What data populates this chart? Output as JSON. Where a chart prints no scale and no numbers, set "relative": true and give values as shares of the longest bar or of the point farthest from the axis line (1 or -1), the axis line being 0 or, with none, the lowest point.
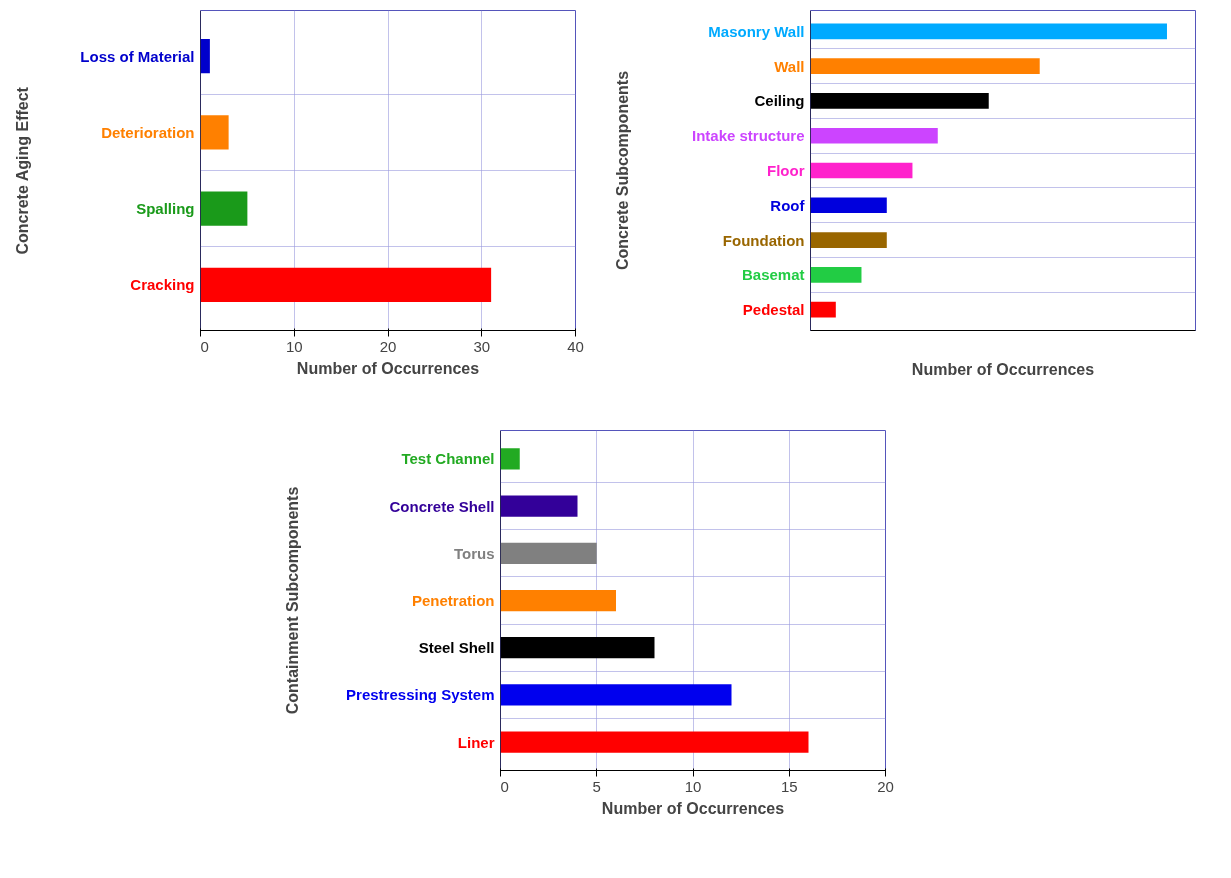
{
  "chart_data": [
    {
      "type": "bar",
      "orientation": "horizontal",
      "ylabel": "Concrete Aging Effect",
      "xlabel": "Number of Occurrences",
      "categories": [
        "Loss of Material",
        "Deterioration",
        "Spalling",
        "Cracking"
      ],
      "values": [
        1,
        3,
        5,
        31
      ],
      "colors": [
        "#0000cc",
        "#ff8000",
        "#1a9a1a",
        "#ff0000"
      ],
      "xlim": [
        0,
        40
      ],
      "xticks": [
        0,
        10,
        20,
        30,
        40
      ],
      "grid": true
    },
    {
      "type": "bar",
      "orientation": "horizontal",
      "relative": true,
      "ylabel": "Concrete Subcomponents",
      "xlabel": "Number of Occurrences",
      "categories": [
        "Masonry Wall",
        "Wall",
        "Ceiling",
        "Intake structure",
        "Floor",
        "Roof",
        "Foundation",
        "Basemat",
        "Pedestal"
      ],
      "values": [
        1,
        0.643,
        0.5,
        0.357,
        0.286,
        0.214,
        0.214,
        0.143,
        0.071
      ],
      "colors": [
        "#00aaff",
        "#ff8000",
        "#000000",
        "#cc44ff",
        "#ff22cc",
        "#0000dd",
        "#996600",
        "#22cc44",
        "#ff0000"
      ],
      "grid": "y"
    },
    {
      "type": "bar",
      "orientation": "horizontal",
      "ylabel": "Containment Subcomponents",
      "xlabel": "Number of Occurrences",
      "categories": [
        "Test Channel",
        "Concrete Shell",
        "Torus",
        "Penetration",
        "Steel Shell",
        "Prestressing System",
        "Liner"
      ],
      "values": [
        1,
        4,
        5,
        6,
        8,
        12,
        16
      ],
      "colors": [
        "#22aa22",
        "#330099",
        "#808080",
        "#ff8000",
        "#000000",
        "#0000ee",
        "#ff0000"
      ],
      "xlim": [
        0,
        20
      ],
      "xticks": [
        0,
        5,
        10,
        15,
        20
      ],
      "grid": true
    }
  ]
}
